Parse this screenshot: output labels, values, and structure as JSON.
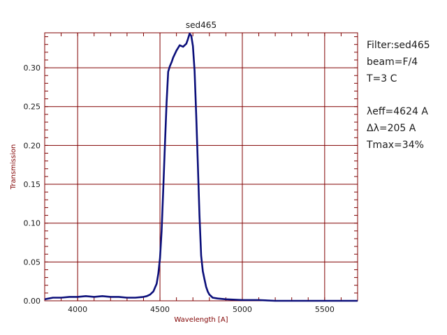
{
  "chart_data": {
    "type": "line",
    "title": "sed465",
    "xlabel": "Wavelength [A]",
    "ylabel": "Transmission",
    "xlim": [
      3800,
      5700
    ],
    "ylim": [
      0.0,
      0.345
    ],
    "grid": true,
    "x_ticks": [
      4000,
      4500,
      5000,
      5500
    ],
    "x_tick_labels": [
      "4000",
      "4500",
      "5000",
      "5500"
    ],
    "y_ticks": [
      0.0,
      0.05,
      0.1,
      0.15,
      0.2,
      0.25,
      0.3
    ],
    "y_tick_labels": [
      "0.00",
      "0.05",
      "0.10",
      "0.15",
      "0.20",
      "0.25",
      "0.30"
    ],
    "series": [
      {
        "x": [
          3800,
          3850,
          3900,
          3950,
          4000,
          4050,
          4100,
          4150,
          4200,
          4250,
          4300,
          4350,
          4400,
          4420,
          4440,
          4460,
          4480,
          4490,
          4500,
          4510,
          4520,
          4530,
          4540,
          4550,
          4560,
          4570,
          4580,
          4600,
          4620,
          4640,
          4660,
          4670,
          4680,
          4690,
          4700,
          4710,
          4720,
          4730,
          4740,
          4750,
          4760,
          4770,
          4780,
          4790,
          4800,
          4820,
          4850,
          4900,
          5000,
          5100,
          5200,
          5300,
          5400,
          5500,
          5600,
          5700
        ],
        "y": [
          0.002,
          0.004,
          0.004,
          0.005,
          0.005,
          0.006,
          0.005,
          0.006,
          0.005,
          0.005,
          0.004,
          0.004,
          0.005,
          0.006,
          0.008,
          0.012,
          0.022,
          0.035,
          0.055,
          0.09,
          0.145,
          0.2,
          0.255,
          0.295,
          0.302,
          0.307,
          0.313,
          0.322,
          0.329,
          0.327,
          0.331,
          0.337,
          0.344,
          0.341,
          0.328,
          0.296,
          0.24,
          0.175,
          0.11,
          0.058,
          0.038,
          0.028,
          0.018,
          0.012,
          0.008,
          0.004,
          0.003,
          0.002,
          0.001,
          0.001,
          0.0,
          0.0,
          0.0,
          0.0,
          0.0,
          0.0
        ]
      }
    ]
  },
  "info": {
    "filter": "Filter:sed465",
    "beam": "beam=F/4",
    "temp": "T=3 C",
    "leff": "λeff=4624 A",
    "dl": "Δλ=205 A",
    "tmax": "Tmax=34%"
  },
  "colors": {
    "axis": "#800000",
    "grid": "#800000",
    "line": "#0b0f7a",
    "text": "#1a1a1a"
  }
}
